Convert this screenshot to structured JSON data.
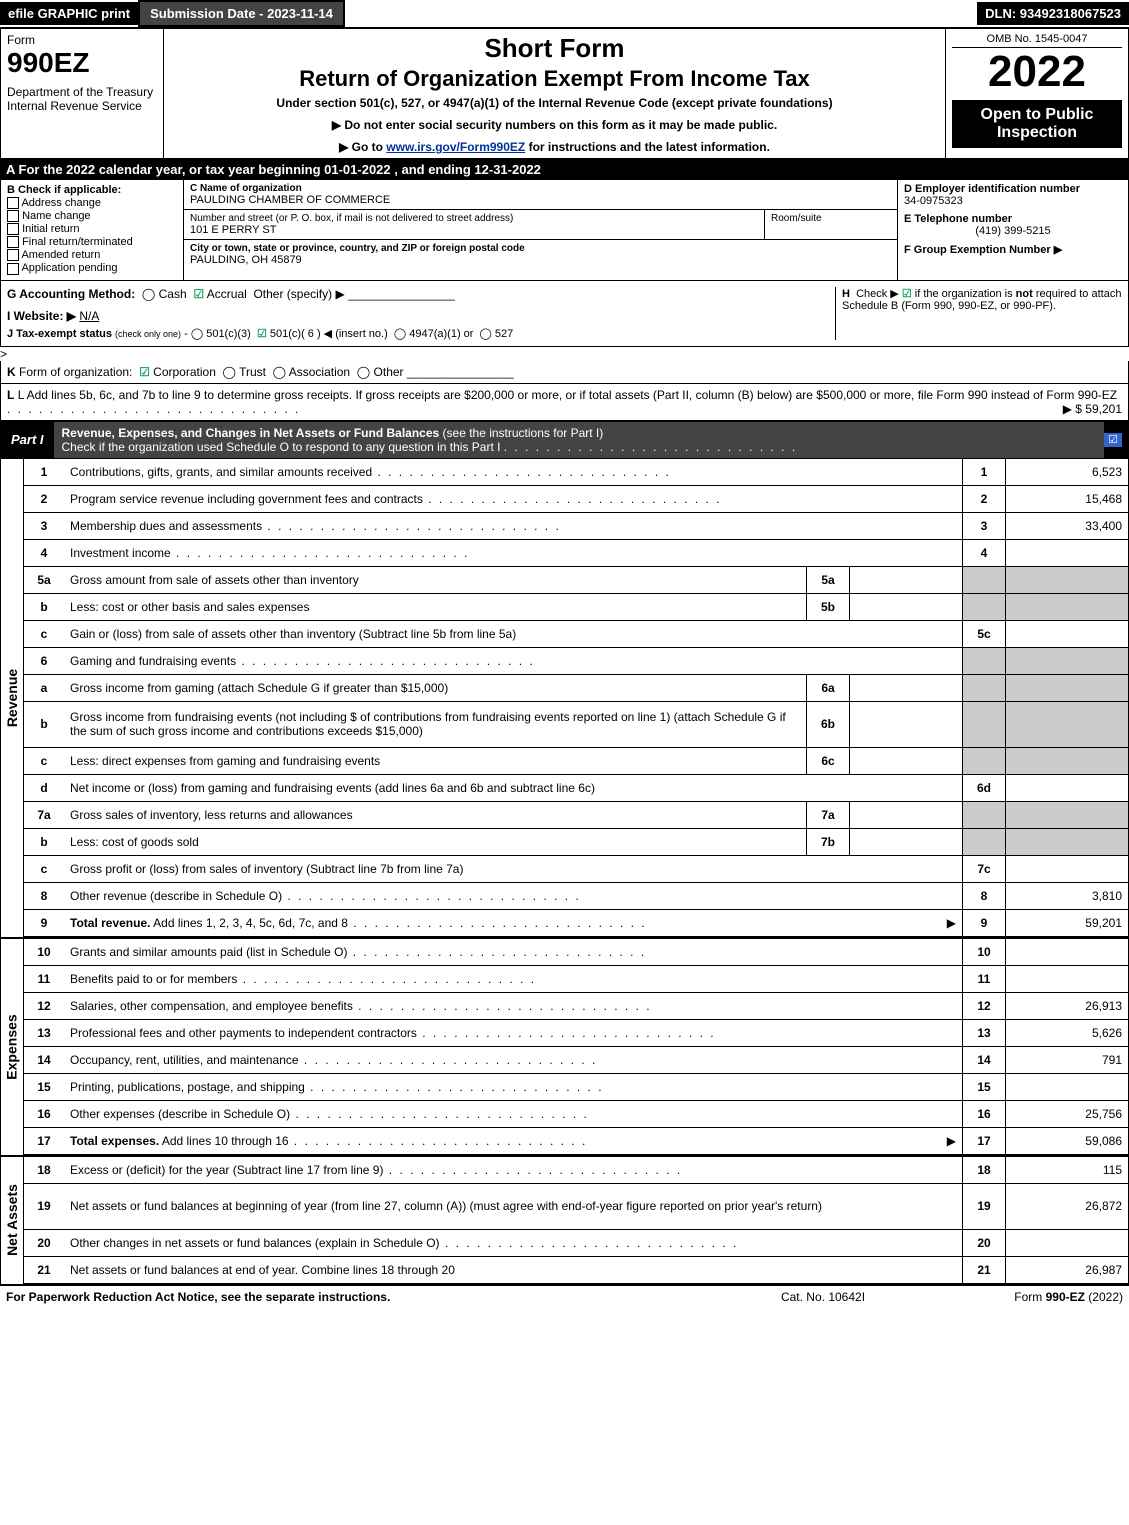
{
  "topbar": {
    "efile": "efile GRAPHIC print",
    "submission": "Submission Date - 2023-11-14",
    "dln": "DLN: 93492318067523"
  },
  "header": {
    "form": "Form",
    "form_no": "990EZ",
    "dept": "Department of the Treasury\nInternal Revenue Service",
    "shortform": "Short Form",
    "title": "Return of Organization Exempt From Income Tax",
    "subtitle": "Under section 501(c), 527, or 4947(a)(1) of the Internal Revenue Code (except private foundations)",
    "note1": "▶ Do not enter social security numbers on this form as it may be made public.",
    "note2_pre": "▶ Go to ",
    "note2_link": "www.irs.gov/Form990EZ",
    "note2_post": " for instructions and the latest information.",
    "omb": "OMB No. 1545-0047",
    "year": "2022",
    "inspect": "Open to Public Inspection"
  },
  "row_a": "A  For the 2022 calendar year, or tax year beginning 01-01-2022 , and ending 12-31-2022",
  "section_b": {
    "title": "B  Check if applicable:",
    "opts": [
      "Address change",
      "Name change",
      "Initial return",
      "Final return/terminated",
      "Amended return",
      "Application pending"
    ]
  },
  "section_c": {
    "c_label": "C Name of organization",
    "c_name": "PAULDING CHAMBER OF COMMERCE",
    "street_label": "Number and street (or P. O. box, if mail is not delivered to street address)",
    "street": "101 E PERRY ST",
    "room_label": "Room/suite",
    "city_label": "City or town, state or province, country, and ZIP or foreign postal code",
    "city": "PAULDING, OH  45879"
  },
  "section_d": {
    "d_label": "D Employer identification number",
    "ein": "34-0975323",
    "e_label": "E Telephone number",
    "phone": "(419) 399-5215",
    "f_label": "F Group Exemption Number  ▶"
  },
  "acct": {
    "g": "G Accounting Method:",
    "cash": "Cash",
    "accrual": "Accrual",
    "other": "Other (specify) ▶",
    "i": "I Website: ▶",
    "i_val": "N/A",
    "j": "J Tax-exempt status (check only one) - ◯ 501(c)(3)  ☑ 501(c)( 6 ) ◀ (insert no.)  ◯ 4947(a)(1) or  ◯ 527",
    "h": "H  Check ▶ ☑ if the organization is not required to attach Schedule B (Form 990, 990-EZ, or 990-PF)."
  },
  "k": "K Form of organization:  ☑ Corporation  ◯ Trust  ◯ Association  ◯ Other",
  "l": {
    "text": "L Add lines 5b, 6c, and 7b to line 9 to determine gross receipts. If gross receipts are $200,000 or more, or if total assets (Part II, column (B) below) are $500,000 or more, file Form 990 instead of Form 990-EZ",
    "amount": "▶ $ 59,201"
  },
  "part1": {
    "label": "Part I",
    "title_bold": "Revenue, Expenses, and Changes in Net Assets or Fund Balances",
    "title_rest": " (see the instructions for Part I)",
    "sub": "Check if the organization used Schedule O to respond to any question in this Part I",
    "check": "☑"
  },
  "revenue": {
    "side": "Revenue",
    "rows": [
      {
        "n": "1",
        "d": "Contributions, gifts, grants, and similar amounts received",
        "ln": "1",
        "v": "6,523"
      },
      {
        "n": "2",
        "d": "Program service revenue including government fees and contracts",
        "ln": "2",
        "v": "15,468"
      },
      {
        "n": "3",
        "d": "Membership dues and assessments",
        "ln": "3",
        "v": "33,400"
      },
      {
        "n": "4",
        "d": "Investment income",
        "ln": "4",
        "v": ""
      },
      {
        "n": "5a",
        "d": "Gross amount from sale of assets other than inventory",
        "sub": "5a",
        "ln": "",
        "v": "",
        "gray": true
      },
      {
        "n": "b",
        "d": "Less: cost or other basis and sales expenses",
        "sub": "5b",
        "ln": "",
        "v": "",
        "gray": true
      },
      {
        "n": "c",
        "d": "Gain or (loss) from sale of assets other than inventory (Subtract line 5b from line 5a)",
        "ln": "5c",
        "v": ""
      },
      {
        "n": "6",
        "d": "Gaming and fundraising events",
        "ln": "",
        "v": "",
        "noborder": true,
        "gray": true
      },
      {
        "n": "a",
        "d": "Gross income from gaming (attach Schedule G if greater than $15,000)",
        "sub": "6a",
        "ln": "",
        "v": "",
        "gray": true
      },
      {
        "n": "b",
        "d": "Gross income from fundraising events (not including $                        of contributions from fundraising events reported on line 1) (attach Schedule G if the sum of such gross income and contributions exceeds $15,000)",
        "sub": "6b",
        "ln": "",
        "v": "",
        "gray": true,
        "tall": true
      },
      {
        "n": "c",
        "d": "Less: direct expenses from gaming and fundraising events",
        "sub": "6c",
        "ln": "",
        "v": "",
        "gray": true
      },
      {
        "n": "d",
        "d": "Net income or (loss) from gaming and fundraising events (add lines 6a and 6b and subtract line 6c)",
        "ln": "6d",
        "v": ""
      },
      {
        "n": "7a",
        "d": "Gross sales of inventory, less returns and allowances",
        "sub": "7a",
        "ln": "",
        "v": "",
        "gray": true
      },
      {
        "n": "b",
        "d": "Less: cost of goods sold",
        "sub": "7b",
        "ln": "",
        "v": "",
        "gray": true
      },
      {
        "n": "c",
        "d": "Gross profit or (loss) from sales of inventory (Subtract line 7b from line 7a)",
        "ln": "7c",
        "v": ""
      },
      {
        "n": "8",
        "d": "Other revenue (describe in Schedule O)",
        "ln": "8",
        "v": "3,810"
      },
      {
        "n": "9",
        "d": "Total revenue. Add lines 1, 2, 3, 4, 5c, 6d, 7c, and 8",
        "ln": "9",
        "v": "59,201",
        "bold": true,
        "arrow": true
      }
    ]
  },
  "expenses": {
    "side": "Expenses",
    "rows": [
      {
        "n": "10",
        "d": "Grants and similar amounts paid (list in Schedule O)",
        "ln": "10",
        "v": ""
      },
      {
        "n": "11",
        "d": "Benefits paid to or for members",
        "ln": "11",
        "v": ""
      },
      {
        "n": "12",
        "d": "Salaries, other compensation, and employee benefits",
        "ln": "12",
        "v": "26,913"
      },
      {
        "n": "13",
        "d": "Professional fees and other payments to independent contractors",
        "ln": "13",
        "v": "5,626"
      },
      {
        "n": "14",
        "d": "Occupancy, rent, utilities, and maintenance",
        "ln": "14",
        "v": "791"
      },
      {
        "n": "15",
        "d": "Printing, publications, postage, and shipping",
        "ln": "15",
        "v": ""
      },
      {
        "n": "16",
        "d": "Other expenses (describe in Schedule O)",
        "ln": "16",
        "v": "25,756"
      },
      {
        "n": "17",
        "d": "Total expenses. Add lines 10 through 16",
        "ln": "17",
        "v": "59,086",
        "bold": true,
        "arrow": true
      }
    ]
  },
  "netassets": {
    "side": "Net Assets",
    "rows": [
      {
        "n": "18",
        "d": "Excess or (deficit) for the year (Subtract line 17 from line 9)",
        "ln": "18",
        "v": "115"
      },
      {
        "n": "19",
        "d": "Net assets or fund balances at beginning of year (from line 27, column (A)) (must agree with end-of-year figure reported on prior year's return)",
        "ln": "19",
        "v": "26,872",
        "tall": true
      },
      {
        "n": "20",
        "d": "Other changes in net assets or fund balances (explain in Schedule O)",
        "ln": "20",
        "v": ""
      },
      {
        "n": "21",
        "d": "Net assets or fund balances at end of year. Combine lines 18 through 20",
        "ln": "21",
        "v": "26,987"
      }
    ]
  },
  "footer": {
    "left": "For Paperwork Reduction Act Notice, see the separate instructions.",
    "mid": "Cat. No. 10642I",
    "right": "Form 990-EZ (2022)"
  },
  "colors": {
    "black": "#000000",
    "white": "#ffffff",
    "gray": "#cccccc",
    "darkgray": "#444444",
    "link": "#003399",
    "check": "#22aa66"
  }
}
